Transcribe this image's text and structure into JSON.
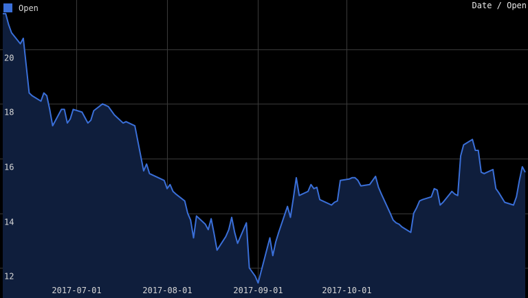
{
  "chart_data": {
    "type": "area",
    "title": "",
    "corner_label": "Date / Open",
    "xlabel": "",
    "ylabel": "",
    "series": [
      {
        "name": "Open",
        "color": "#3a6fd8",
        "fill": "#0f1e3c",
        "points": [
          [
            "2017-06-06",
            21.3
          ],
          [
            "2017-06-07",
            21.3
          ],
          [
            "2017-06-08",
            20.9
          ],
          [
            "2017-06-09",
            20.6
          ],
          [
            "2017-06-12",
            20.2
          ],
          [
            "2017-06-13",
            20.4
          ],
          [
            "2017-06-14",
            19.4
          ],
          [
            "2017-06-15",
            18.4
          ],
          [
            "2017-06-16",
            18.3
          ],
          [
            "2017-06-19",
            18.1
          ],
          [
            "2017-06-20",
            18.4
          ],
          [
            "2017-06-21",
            18.3
          ],
          [
            "2017-06-22",
            17.8
          ],
          [
            "2017-06-23",
            17.2
          ],
          [
            "2017-06-26",
            17.8
          ],
          [
            "2017-06-27",
            17.8
          ],
          [
            "2017-06-28",
            17.3
          ],
          [
            "2017-06-29",
            17.45
          ],
          [
            "2017-06-30",
            17.8
          ],
          [
            "2017-07-03",
            17.7
          ],
          [
            "2017-07-05",
            17.3
          ],
          [
            "2017-07-06",
            17.4
          ],
          [
            "2017-07-07",
            17.75
          ],
          [
            "2017-07-10",
            18.0
          ],
          [
            "2017-07-11",
            17.95
          ],
          [
            "2017-07-12",
            17.9
          ],
          [
            "2017-07-13",
            17.75
          ],
          [
            "2017-07-14",
            17.6
          ],
          [
            "2017-07-17",
            17.3
          ],
          [
            "2017-07-18",
            17.35
          ],
          [
            "2017-07-19",
            17.3
          ],
          [
            "2017-07-20",
            17.25
          ],
          [
            "2017-07-21",
            17.2
          ],
          [
            "2017-07-24",
            15.55
          ],
          [
            "2017-07-25",
            15.8
          ],
          [
            "2017-07-26",
            15.45
          ],
          [
            "2017-07-27",
            15.4
          ],
          [
            "2017-07-28",
            15.35
          ],
          [
            "2017-07-31",
            15.2
          ],
          [
            "2017-08-01",
            14.9
          ],
          [
            "2017-08-02",
            15.05
          ],
          [
            "2017-08-03",
            14.8
          ],
          [
            "2017-08-04",
            14.7
          ],
          [
            "2017-08-07",
            14.45
          ],
          [
            "2017-08-08",
            14.0
          ],
          [
            "2017-08-09",
            13.75
          ],
          [
            "2017-08-10",
            13.1
          ],
          [
            "2017-08-11",
            13.9
          ],
          [
            "2017-08-14",
            13.6
          ],
          [
            "2017-08-15",
            13.4
          ],
          [
            "2017-08-16",
            13.8
          ],
          [
            "2017-08-17",
            13.25
          ],
          [
            "2017-08-18",
            12.65
          ],
          [
            "2017-08-21",
            13.15
          ],
          [
            "2017-08-22",
            13.4
          ],
          [
            "2017-08-23",
            13.85
          ],
          [
            "2017-08-24",
            13.3
          ],
          [
            "2017-08-25",
            12.9
          ],
          [
            "2017-08-28",
            13.65
          ],
          [
            "2017-08-29",
            12.0
          ],
          [
            "2017-08-30",
            11.85
          ],
          [
            "2017-08-31",
            11.7
          ],
          [
            "2017-09-01",
            11.45
          ],
          [
            "2017-09-05",
            13.1
          ],
          [
            "2017-09-06",
            12.45
          ],
          [
            "2017-09-07",
            12.95
          ],
          [
            "2017-09-08",
            13.3
          ],
          [
            "2017-09-11",
            14.25
          ],
          [
            "2017-09-12",
            13.85
          ],
          [
            "2017-09-13",
            14.55
          ],
          [
            "2017-09-14",
            15.3
          ],
          [
            "2017-09-15",
            14.65
          ],
          [
            "2017-09-18",
            14.8
          ],
          [
            "2017-09-19",
            15.05
          ],
          [
            "2017-09-20",
            14.9
          ],
          [
            "2017-09-21",
            14.95
          ],
          [
            "2017-09-22",
            14.5
          ],
          [
            "2017-09-25",
            14.35
          ],
          [
            "2017-09-26",
            14.3
          ],
          [
            "2017-09-27",
            14.4
          ],
          [
            "2017-09-28",
            14.45
          ],
          [
            "2017-09-29",
            15.2
          ],
          [
            "2017-10-02",
            15.25
          ],
          [
            "2017-10-03",
            15.3
          ],
          [
            "2017-10-04",
            15.3
          ],
          [
            "2017-10-05",
            15.2
          ],
          [
            "2017-10-06",
            15.0
          ],
          [
            "2017-10-09",
            15.05
          ],
          [
            "2017-10-10",
            15.2
          ],
          [
            "2017-10-11",
            15.35
          ],
          [
            "2017-10-12",
            14.95
          ],
          [
            "2017-10-13",
            14.7
          ],
          [
            "2017-10-16",
            14.0
          ],
          [
            "2017-10-17",
            13.75
          ],
          [
            "2017-10-18",
            13.65
          ],
          [
            "2017-10-19",
            13.6
          ],
          [
            "2017-10-20",
            13.5
          ],
          [
            "2017-10-23",
            13.3
          ],
          [
            "2017-10-24",
            14.0
          ],
          [
            "2017-10-25",
            14.2
          ],
          [
            "2017-10-26",
            14.45
          ],
          [
            "2017-10-27",
            14.5
          ],
          [
            "2017-10-30",
            14.6
          ],
          [
            "2017-10-31",
            14.9
          ],
          [
            "2017-11-01",
            14.85
          ],
          [
            "2017-11-02",
            14.3
          ],
          [
            "2017-11-03",
            14.4
          ],
          [
            "2017-11-06",
            14.8
          ],
          [
            "2017-11-07",
            14.7
          ],
          [
            "2017-11-08",
            14.65
          ],
          [
            "2017-11-09",
            16.1
          ],
          [
            "2017-11-10",
            16.5
          ],
          [
            "2017-11-13",
            16.7
          ],
          [
            "2017-11-14",
            16.3
          ],
          [
            "2017-11-15",
            16.3
          ],
          [
            "2017-11-16",
            15.5
          ],
          [
            "2017-11-17",
            15.45
          ],
          [
            "2017-11-20",
            15.6
          ],
          [
            "2017-11-21",
            14.9
          ],
          [
            "2017-11-22",
            14.75
          ],
          [
            "2017-11-24",
            14.4
          ],
          [
            "2017-11-27",
            14.3
          ],
          [
            "2017-11-28",
            14.6
          ],
          [
            "2017-11-29",
            15.2
          ],
          [
            "2017-11-30",
            15.7
          ],
          [
            "2017-12-01",
            15.5
          ]
        ]
      }
    ],
    "x_ticks": [
      "2017-07-01",
      "2017-08-01",
      "2017-09-01",
      "2017-10-01"
    ],
    "y_ticks": [
      12,
      14,
      16,
      18,
      20
    ],
    "xlim": [
      "2017-06-06",
      "2017-12-01"
    ],
    "ylim": [
      10.9,
      21.8
    ],
    "grid": true,
    "legend_position": "top-left"
  }
}
